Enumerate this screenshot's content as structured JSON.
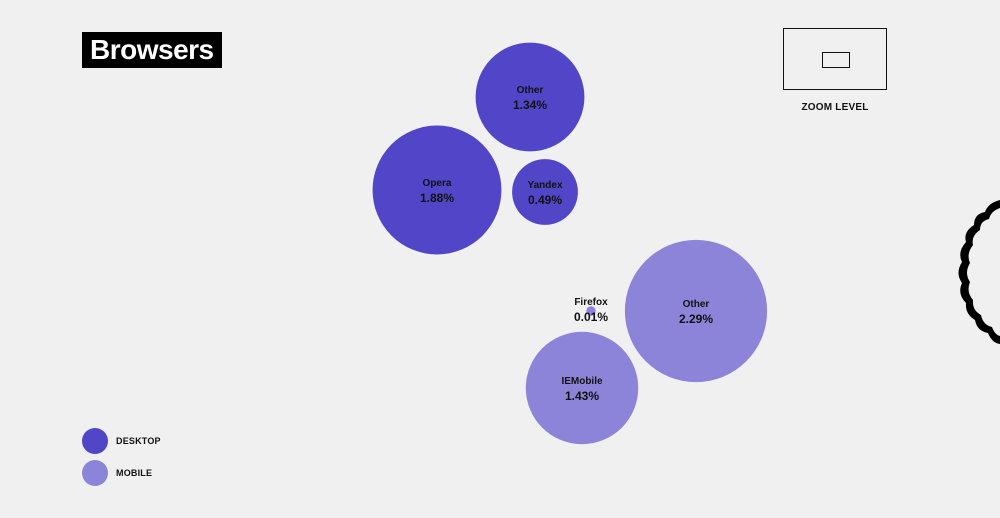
{
  "title": "Browsers",
  "zoom": {
    "label": "ZOOM LEVEL"
  },
  "colors": {
    "desktop": "#5246c8",
    "mobile": "#8c84d9"
  },
  "chart_data": {
    "type": "bubble",
    "title": "Browsers",
    "legend": {
      "placement": "bottom-left",
      "entries": [
        {
          "name": "DESKTOP",
          "color": "#5246c8"
        },
        {
          "name": "MOBILE",
          "color": "#8c84d9"
        }
      ]
    },
    "series": [
      {
        "name": "DESKTOP",
        "points": [
          {
            "label": "Other",
            "value": 1.34,
            "display": "1.34%"
          },
          {
            "label": "Opera",
            "value": 1.88,
            "display": "1.88%"
          },
          {
            "label": "Yandex",
            "value": 0.49,
            "display": "0.49%"
          }
        ]
      },
      {
        "name": "MOBILE",
        "points": [
          {
            "label": "Firefox",
            "value": 0.01,
            "display": "0.01%"
          },
          {
            "label": "Other",
            "value": 2.29,
            "display": "2.29%"
          },
          {
            "label": "IEMobile",
            "value": 1.43,
            "display": "1.43%"
          }
        ]
      }
    ]
  }
}
